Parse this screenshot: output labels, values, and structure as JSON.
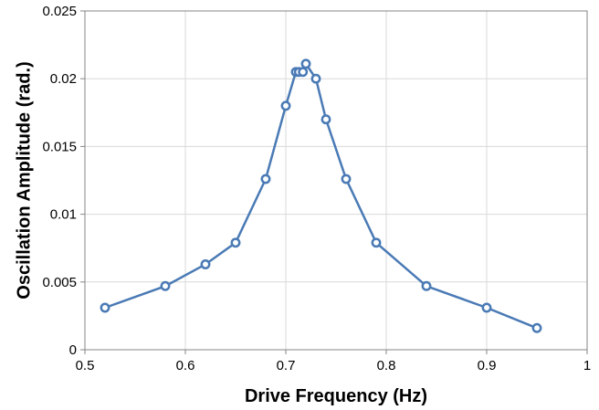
{
  "chart_data": {
    "type": "line",
    "title": "",
    "xlabel": "Drive Frequency (Hz)",
    "ylabel": "Oscillation Amplitude (rad.)",
    "xlim": [
      0.5,
      1
    ],
    "ylim": [
      0,
      0.025
    ],
    "x_ticks": [
      0.5,
      0.6,
      0.7,
      0.8,
      0.9,
      1
    ],
    "y_ticks": [
      0,
      0.005,
      0.01,
      0.015,
      0.02,
      0.025
    ],
    "x_tick_labels": [
      "0.5",
      "0.6",
      "0.7",
      "0.8",
      "0.9",
      "1"
    ],
    "y_tick_labels": [
      "0",
      "0.005",
      "0.01",
      "0.015",
      "0.02",
      "0.025"
    ],
    "grid": true,
    "markers": "open-circle",
    "color": "#4a7ab5",
    "series": [
      {
        "x": [
          0.52,
          0.58,
          0.62,
          0.65,
          0.68,
          0.7,
          0.71,
          0.713,
          0.717,
          0.72,
          0.73,
          0.74,
          0.76,
          0.79,
          0.84,
          0.9,
          0.95
        ],
        "y": [
          0.0031,
          0.0047,
          0.0063,
          0.0079,
          0.0126,
          0.018,
          0.0205,
          0.0205,
          0.0205,
          0.0211,
          0.02,
          0.017,
          0.0126,
          0.0079,
          0.0047,
          0.0031,
          0.0016
        ]
      }
    ]
  }
}
